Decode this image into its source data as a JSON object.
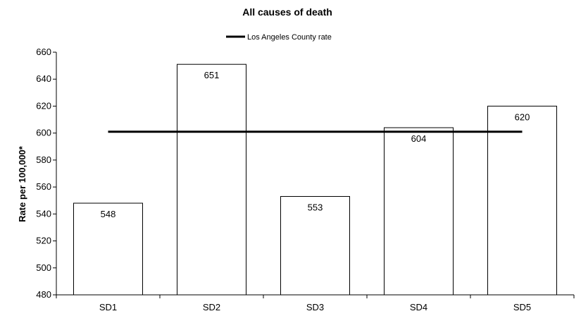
{
  "chart_data": {
    "type": "bar",
    "title": "All causes of death",
    "xlabel": "",
    "ylabel": "Rate per 100,000*",
    "categories": [
      "SD1",
      "SD2",
      "SD3",
      "SD4",
      "SD5"
    ],
    "values": [
      548,
      651,
      553,
      604,
      620
    ],
    "data_labels": [
      "548",
      "651",
      "553",
      "604",
      "620"
    ],
    "ylim": [
      480,
      660
    ],
    "yticks": [
      480,
      500,
      520,
      540,
      560,
      580,
      600,
      620,
      640,
      660
    ],
    "reference_line": {
      "name": "Los Angeles County rate",
      "value": 601,
      "color": "#000000"
    },
    "legend": {
      "position": "top-center",
      "label": "Los Angeles County rate"
    },
    "grid": false,
    "bar_fill": "#ffffff",
    "bar_stroke": "#000000"
  }
}
